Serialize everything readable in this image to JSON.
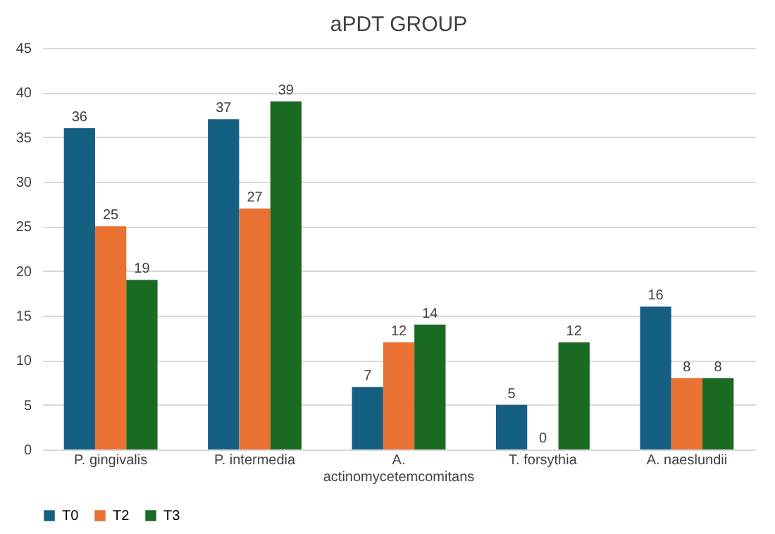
{
  "chart_data": {
    "type": "bar",
    "title": "aPDT GROUP",
    "categories": [
      "P. gingivalis",
      "P. intermedia",
      "A. actinomycetemcomitans",
      "T. forsythia",
      "A. naeslundii"
    ],
    "series": [
      {
        "name": "T0",
        "color": "#156082",
        "values": [
          36,
          37,
          7,
          5,
          16
        ]
      },
      {
        "name": "T2",
        "color": "#e97132",
        "values": [
          25,
          27,
          12,
          0,
          8
        ]
      },
      {
        "name": "T3",
        "color": "#196b24",
        "values": [
          19,
          39,
          14,
          12,
          8
        ]
      }
    ],
    "ylim": [
      0,
      45
    ],
    "yticks": [
      0,
      5,
      10,
      15,
      20,
      25,
      30,
      35,
      40,
      45
    ],
    "grid": "y",
    "legend": "bottom",
    "data_labels": true
  }
}
